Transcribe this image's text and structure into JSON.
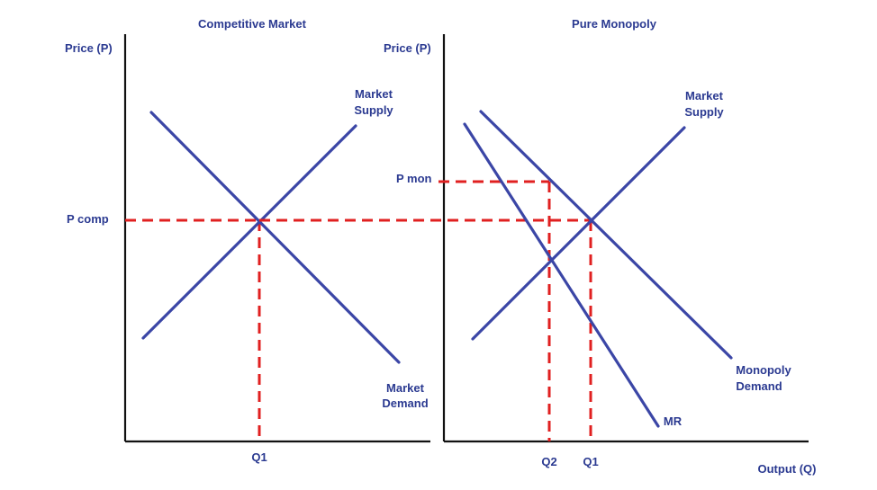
{
  "colors": {
    "curve": "#3b46a6",
    "guide": "#e02020",
    "axis": "#111111",
    "text": "#2b3a91"
  },
  "left_panel": {
    "title": "Competitive Market",
    "y_axis_label": "Price (P)",
    "supply_label_line1": "Market",
    "supply_label_line2": "Supply",
    "demand_label_line1": "Market",
    "demand_label_line2": "Demand",
    "price_label": "P comp",
    "quantity_label": "Q1"
  },
  "right_panel": {
    "title": "Pure Monopoly",
    "y_axis_label": "Price (P)",
    "supply_label_line1": "Market",
    "supply_label_line2": "Supply",
    "demand_label_line1": "Monopoly",
    "demand_label_line2": "Demand",
    "mr_label": "MR",
    "price_mon_label": "P mon",
    "q2_label": "Q2",
    "q1_label": "Q1",
    "x_axis_label": "Output (Q)"
  }
}
